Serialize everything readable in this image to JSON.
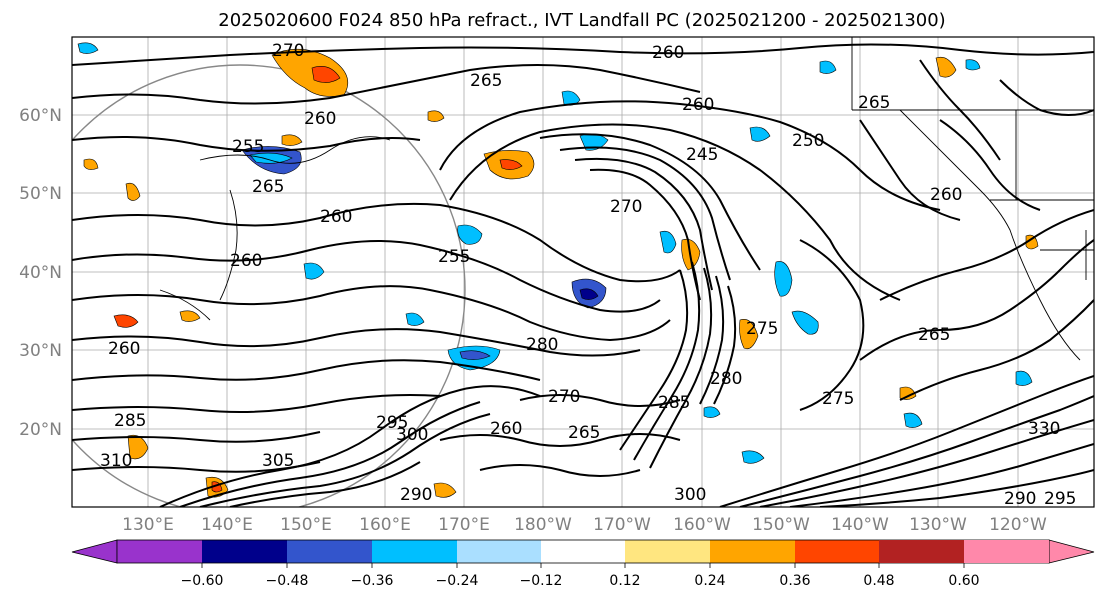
{
  "title": "2025020600 F024 850 hPa refract., IVT Landfall PC (2025021200 - 2025021300)",
  "map": {
    "lat_labels": [
      "60°N",
      "50°N",
      "40°N",
      "30°N",
      "20°N"
    ],
    "lon_labels": [
      "130°E",
      "140°E",
      "150°E",
      "160°E",
      "170°E",
      "180°W",
      "170°W",
      "160°W",
      "150°W",
      "140°W",
      "130°W",
      "120°W"
    ],
    "contour_labels": [
      "270",
      "260",
      "265",
      "255",
      "260",
      "245",
      "250",
      "260",
      "265",
      "270",
      "260",
      "255",
      "265",
      "260",
      "260",
      "280",
      "275",
      "280",
      "265",
      "260",
      "275",
      "270",
      "285",
      "295",
      "260",
      "265",
      "300",
      "310",
      "305",
      "290",
      "300",
      "295",
      "290",
      "285",
      "330"
    ]
  },
  "colorbar": {
    "tick_labels": [
      "−0.60",
      "−0.48",
      "−0.36",
      "−0.24",
      "−0.12",
      "0.12",
      "0.24",
      "0.36",
      "0.48",
      "0.60"
    ],
    "colors": [
      "#9933cc",
      "#00008b",
      "#3355cc",
      "#00bfff",
      "#aadfff",
      "#ffffff",
      "#ffe680",
      "#ffa500",
      "#ff4500",
      "#b22222",
      "#ff88aa"
    ]
  }
}
